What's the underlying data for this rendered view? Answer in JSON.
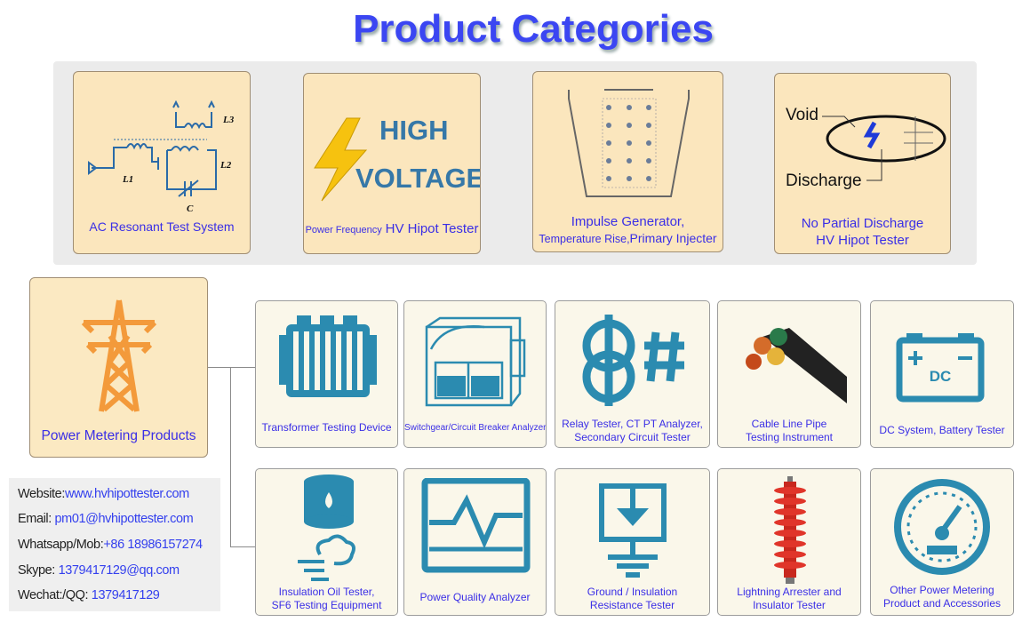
{
  "title": "Product Categories",
  "top_categories": [
    {
      "label": "AC Resonant Test System",
      "icon": "lc-circuit-icon",
      "circuit_labels": [
        "L3",
        "L2",
        "L1",
        "C"
      ]
    },
    {
      "label_small": "Power Frequency",
      "label_main": "HV Hipot Tester",
      "icon": "lightning-bolt-icon",
      "graphic_text": [
        "HIGH",
        "VOLTAGE"
      ]
    },
    {
      "label_line1": "Impulse Generator,",
      "label_line2a": "Temperature Rise,",
      "label_line2b": "Primary Injecter",
      "icon": "impulse-generator-icon"
    },
    {
      "label_line1": "No Partial Discharge",
      "label_line2": "HV Hipot Tester",
      "icon": "partial-discharge-icon",
      "graphic_text": [
        "Void",
        "Discharge"
      ]
    }
  ],
  "power_metering": {
    "label": "Power Metering Products",
    "icon": "transmission-tower-icon"
  },
  "products_row1": [
    {
      "lines": [
        "Transformer Testing Device"
      ],
      "icon": "transformer-icon"
    },
    {
      "lines": [
        "Switchgear/Circuit Breaker Analyzer"
      ],
      "icon": "switchgear-icon"
    },
    {
      "lines": [
        "Relay Tester, CT PT Analyzer,",
        "Secondary Circuit Tester"
      ],
      "icon": "ct-pt-icon"
    },
    {
      "lines": [
        "Cable Line Pipe",
        "Testing Instrument"
      ],
      "icon": "cable-icon"
    },
    {
      "lines": [
        "DC System, Battery Tester"
      ],
      "icon": "battery-icon",
      "graphic_text": "DC"
    }
  ],
  "products_row2": [
    {
      "lines": [
        "Insulation Oil Tester,",
        "SF6 Testing Equipment"
      ],
      "icon": "oil-barrel-icon"
    },
    {
      "lines": [
        "Power Quality Analyzer"
      ],
      "icon": "waveform-monitor-icon"
    },
    {
      "lines": [
        "Ground / Insulation",
        "Resistance Tester"
      ],
      "icon": "ground-icon"
    },
    {
      "lines": [
        "Lightning Arrester and",
        "Insulator Tester"
      ],
      "icon": "insulator-icon"
    },
    {
      "lines": [
        "Other Power Metering",
        "Product and Accessories"
      ],
      "icon": "gauge-icon"
    }
  ],
  "contact": [
    {
      "label": "Website:",
      "value": "www.hvhipottester.com"
    },
    {
      "label": "Email: ",
      "value": "pm01@hvhipottester.com"
    },
    {
      "label": "Whatsapp/Mob:",
      "value": "+86 18986157274"
    },
    {
      "label": "Skype: ",
      "value": "1379417129@qq.com"
    },
    {
      "label": "Wechat:/QQ: ",
      "value": "1379417129"
    }
  ],
  "colors": {
    "title": "#3b46f2",
    "label": "#3a2ee6",
    "icon": "#2b8bb0",
    "tower": "#f39a3b",
    "top_card": "#fbe6bd",
    "bottom_card": "#faf7ea"
  }
}
